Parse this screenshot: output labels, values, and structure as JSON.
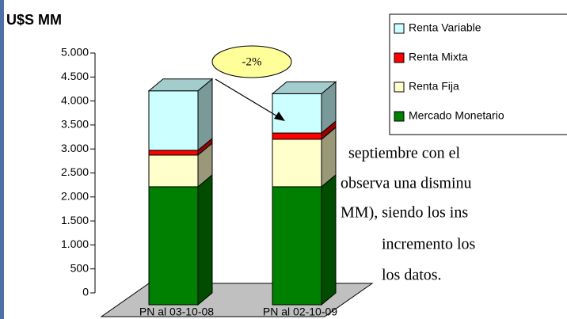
{
  "chart_data": {
    "type": "bar",
    "stacked": true,
    "title": "U$S MM",
    "categories": [
      "PN al 03-10-08",
      "PN al 02-10-09"
    ],
    "series": [
      {
        "name": "Mercado Monetario",
        "color": "#008000",
        "values": [
          2460,
          2460
        ]
      },
      {
        "name": "Renta Fija",
        "color": "#ffffcc",
        "values": [
          660,
          990
        ]
      },
      {
        "name": "Renta Mixta",
        "color": "#ff0000",
        "values": [
          100,
          130
        ]
      },
      {
        "name": "Renta Variable",
        "color": "#ccffff",
        "values": [
          1240,
          820
        ]
      }
    ],
    "ylim": [
      0,
      5000
    ],
    "yticks": [
      0,
      {
        "value": 500,
        "label": "500"
      },
      {
        "value": 1000,
        "label": "1.000"
      },
      {
        "value": 1500,
        "label": "1.500"
      },
      {
        "value": 2000,
        "label": "2.000"
      },
      {
        "value": 2500,
        "label": "2.500"
      },
      {
        "value": 3000,
        "label": "3.000"
      },
      {
        "value": 3500,
        "label": "3.500"
      },
      {
        "value": 4000,
        "label": "4.000"
      },
      {
        "value": 4500,
        "label": "4.500"
      },
      {
        "value": 5000,
        "label": "5.000"
      }
    ],
    "annotation": "-2%"
  },
  "document_text": [
    "septiembre  con  el",
    "observa una disminu",
    "MM), siendo los ins",
    "incremento los",
    "los datos."
  ]
}
